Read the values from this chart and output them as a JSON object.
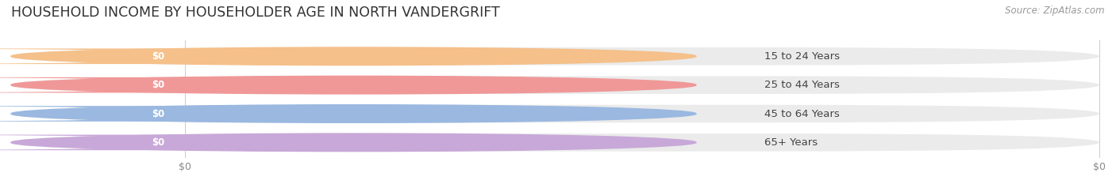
{
  "title": "HOUSEHOLD INCOME BY HOUSEHOLDER AGE IN NORTH VANDERGRIFT",
  "source": "Source: ZipAtlas.com",
  "categories": [
    "15 to 24 Years",
    "25 to 44 Years",
    "45 to 64 Years",
    "65+ Years"
  ],
  "values": [
    0,
    0,
    0,
    0
  ],
  "bar_colors": [
    "#f5c08a",
    "#f09898",
    "#9ab8e0",
    "#c8a8d8"
  ],
  "value_labels": [
    "$0",
    "$0",
    "$0",
    "$0"
  ],
  "x_tick_labels": [
    "$0",
    "$0"
  ],
  "background_color": "#ffffff",
  "bar_bg_color": "#ebebeb",
  "title_fontsize": 12.5,
  "source_fontsize": 8.5,
  "label_fontsize": 9.5,
  "value_fontsize": 8.5
}
